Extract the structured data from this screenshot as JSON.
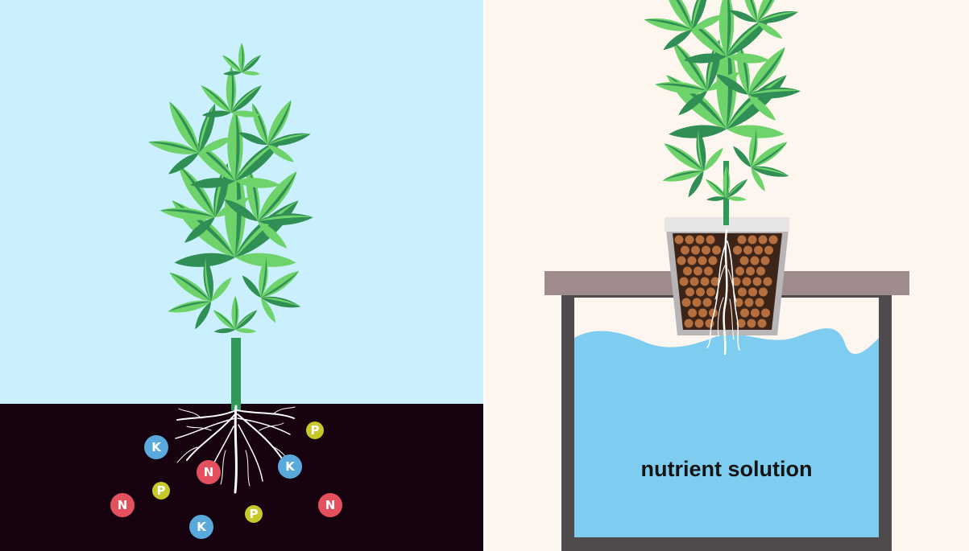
{
  "soil_panel": {
    "sky_color": "#cbf0fd",
    "soil_color": "#17020f",
    "nutrients": [
      {
        "label": "K",
        "color": "#5aa9dc"
      },
      {
        "label": "P",
        "color": "#c7c82a"
      },
      {
        "label": "N",
        "color": "#e5505f"
      },
      {
        "label": "K",
        "color": "#5aa9dc"
      },
      {
        "label": "P",
        "color": "#c7c82a"
      },
      {
        "label": "N",
        "color": "#e5505f"
      },
      {
        "label": "P",
        "color": "#c7c82a"
      },
      {
        "label": "K",
        "color": "#5aa9dc"
      },
      {
        "label": "N",
        "color": "#e5505f"
      }
    ]
  },
  "hydro_panel": {
    "background_color": "#fdf6ee",
    "water_color": "#7ecdf1",
    "table_color": "#a08b8c",
    "tank_color": "#4f4a4c",
    "pebble_color": "#b56f3e",
    "solution_label": "nutrient solution"
  },
  "plant_colors": {
    "light_leaf": "#6fd36b",
    "dark_leaf": "#2f8f55",
    "stem": "#2f9a57"
  }
}
